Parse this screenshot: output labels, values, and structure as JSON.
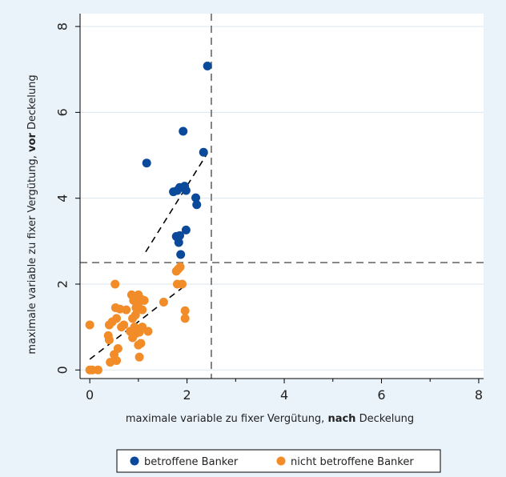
{
  "chart_data": {
    "type": "scatter",
    "title": "",
    "xlabel": {
      "prefix": "maximale variable zu fixer Vergütung, ",
      "bold": "nach",
      "suffix": " Deckelung"
    },
    "ylabel": {
      "prefix": "maximale variable zu fixer Vergütung, ",
      "bold": "vor",
      "suffix": " Deckelung"
    },
    "xlim": [
      -0.2,
      8.1
    ],
    "ylim": [
      -0.2,
      8.3
    ],
    "xticks": [
      0,
      2,
      4,
      6,
      8
    ],
    "yticks": [
      0,
      2,
      4,
      6,
      8
    ],
    "xminorticks": [
      1,
      3,
      5,
      7
    ],
    "grid": "horizontal",
    "legend_position": "bottom",
    "reference_lines": {
      "x": 2.5,
      "y": 2.5,
      "style": "dashed",
      "color": "#777777"
    },
    "series": [
      {
        "name": "betroffene Banker",
        "color": "#0b4a9a",
        "points": [
          [
            2.42,
            7.08
          ],
          [
            1.92,
            5.56
          ],
          [
            2.34,
            5.07
          ],
          [
            1.17,
            4.82
          ],
          [
            1.85,
            4.25
          ],
          [
            1.72,
            4.15
          ],
          [
            1.8,
            4.18
          ],
          [
            1.95,
            4.28
          ],
          [
            1.98,
            4.18
          ],
          [
            2.18,
            4.01
          ],
          [
            2.2,
            3.85
          ],
          [
            1.98,
            3.26
          ],
          [
            1.78,
            3.11
          ],
          [
            1.85,
            3.13
          ],
          [
            1.83,
            2.97
          ],
          [
            1.87,
            2.69
          ]
        ],
        "fit_line": [
          [
            1.15,
            2.75
          ],
          [
            2.42,
            5.05
          ]
        ]
      },
      {
        "name": "nicht betroffene Banker",
        "color": "#f28c28",
        "points": [
          [
            0.0,
            1.05
          ],
          [
            0.0,
            0.0
          ],
          [
            0.05,
            0.0
          ],
          [
            0.17,
            0.0
          ],
          [
            0.42,
            0.18
          ],
          [
            0.55,
            0.22
          ],
          [
            0.4,
            0.7
          ],
          [
            0.38,
            0.8
          ],
          [
            0.5,
            0.36
          ],
          [
            0.58,
            0.5
          ],
          [
            0.4,
            1.05
          ],
          [
            0.46,
            1.12
          ],
          [
            0.55,
            1.2
          ],
          [
            0.65,
            1.0
          ],
          [
            0.7,
            1.05
          ],
          [
            0.53,
            1.45
          ],
          [
            0.62,
            1.42
          ],
          [
            0.75,
            1.4
          ],
          [
            0.52,
            2.0
          ],
          [
            0.88,
            0.75
          ],
          [
            0.83,
            0.9
          ],
          [
            0.92,
            1.0
          ],
          [
            0.95,
            0.85
          ],
          [
            1.0,
            0.95
          ],
          [
            1.02,
            0.88
          ],
          [
            1.05,
            0.62
          ],
          [
            1.0,
            0.58
          ],
          [
            1.02,
            0.3
          ],
          [
            1.08,
            1.0
          ],
          [
            1.2,
            0.9
          ],
          [
            0.88,
            1.2
          ],
          [
            0.94,
            1.28
          ],
          [
            0.95,
            1.45
          ],
          [
            1.0,
            1.55
          ],
          [
            1.08,
            1.4
          ],
          [
            1.0,
            1.62
          ],
          [
            0.9,
            1.62
          ],
          [
            1.07,
            1.64
          ],
          [
            1.12,
            1.62
          ],
          [
            0.86,
            1.75
          ],
          [
            1.0,
            1.75
          ],
          [
            1.52,
            1.58
          ],
          [
            1.8,
            2.0
          ],
          [
            1.78,
            2.3
          ],
          [
            1.82,
            2.35
          ],
          [
            1.86,
            2.4
          ],
          [
            1.9,
            2.0
          ],
          [
            1.96,
            1.38
          ],
          [
            1.96,
            1.2
          ]
        ],
        "fit_line": [
          [
            0.0,
            0.25
          ],
          [
            2.0,
            2.0
          ]
        ]
      }
    ]
  }
}
